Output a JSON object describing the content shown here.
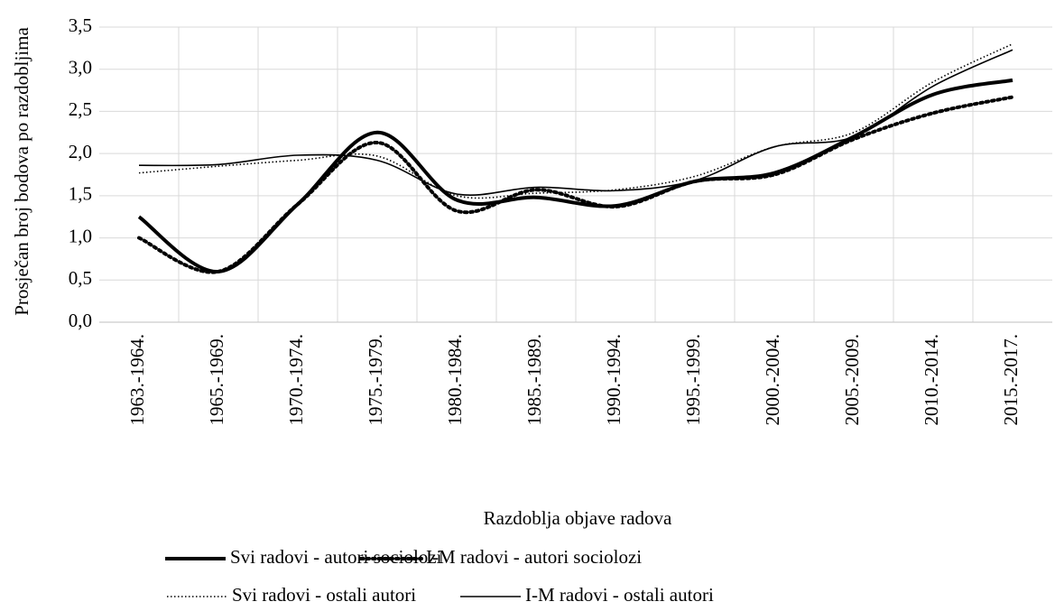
{
  "chart_data": {
    "type": "line",
    "y_axis_label": "Prosječan broj bodova po razdobljima",
    "x_axis_label": "Razdoblja objave radova",
    "categories": [
      "1963.-1964.",
      "1965.-1969.",
      "1970.-1974.",
      "1975.-1979.",
      "1980.-1984.",
      "1985.-1989.",
      "1990.-1994.",
      "1995.-1999.",
      "2000.-2004.",
      "2005.-2009.",
      "2010.-2014.",
      "2015.-2017."
    ],
    "series": [
      {
        "name": "Svi radovi - autori sociolozi",
        "color": "#000000",
        "line_style": "solid",
        "line_width": "thick",
        "values": [
          1.25,
          0.6,
          1.4,
          2.25,
          1.45,
          1.48,
          1.38,
          1.67,
          1.77,
          2.2,
          2.7,
          2.87
        ]
      },
      {
        "name": "I-M radovi - autori sociolozi",
        "color": "#000000",
        "line_style": "dotted",
        "line_width": "thick",
        "values": [
          1.0,
          0.6,
          1.4,
          2.13,
          1.32,
          1.57,
          1.37,
          1.67,
          1.75,
          2.17,
          2.48,
          2.67
        ]
      },
      {
        "name": "Svi radovi - ostali autori",
        "color": "#000000",
        "line_style": "dotted",
        "line_width": "thin",
        "values": [
          1.77,
          1.85,
          1.92,
          1.97,
          1.5,
          1.53,
          1.57,
          1.73,
          2.08,
          2.25,
          2.85,
          3.3
        ]
      },
      {
        "name": "I-M radovi - ostali autori",
        "color": "#000000",
        "line_style": "solid",
        "line_width": "thin",
        "values": [
          1.86,
          1.87,
          1.98,
          1.92,
          1.52,
          1.6,
          1.56,
          1.68,
          2.08,
          2.2,
          2.8,
          3.23
        ]
      }
    ],
    "smooth": true,
    "ylim": [
      0,
      3.5
    ],
    "yticks": [
      {
        "value": 0,
        "label": "0,0"
      },
      {
        "value": 0.5,
        "label": "0,5"
      },
      {
        "value": 1,
        "label": "1,0"
      },
      {
        "value": 1.5,
        "label": "1,5"
      },
      {
        "value": 2,
        "label": "2,0"
      },
      {
        "value": 2.5,
        "label": "2,5"
      },
      {
        "value": 3,
        "label": "3,0"
      },
      {
        "value": 3.5,
        "label": "3,5"
      }
    ],
    "grid": true,
    "legend_position": "bottom"
  }
}
